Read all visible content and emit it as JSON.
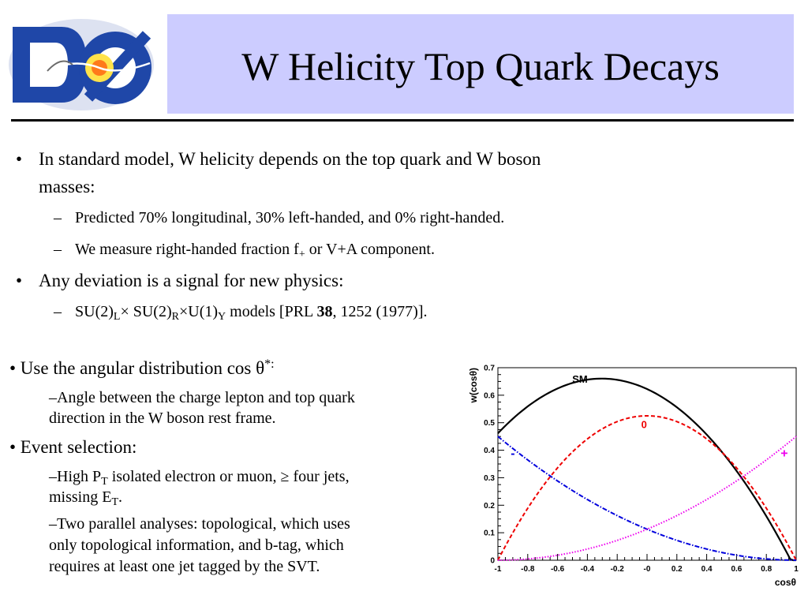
{
  "title": "W Helicity Top Quark Decays",
  "bullets": {
    "b1_line1": "In standard model, W helicity depends on the top quark and W boson",
    "b1_line2": "masses:",
    "b1_sub1": "Predicted 70% longitudinal, 30% left-handed, and 0% right-handed.",
    "b1_sub2_pre": "We measure right-handed fraction f",
    "b1_sub2_subscript": "+",
    "b1_sub2_post": " or V+A component.",
    "b2": "Any deviation is a signal for new physics:",
    "b2_sub": {
      "p1": "SU(2)",
      "s1": "L",
      "p2": "× SU(2)",
      "s2": "R",
      "p3": "×U(1)",
      "s3": "Y",
      "p4": " models [PRL ",
      "bold": "38",
      "p5": ", 1252 (1977)]."
    }
  },
  "bullets2": {
    "b3_pre": "• Use the angular distribution cos θ",
    "b3_sup": "*:",
    "b3_sub_line1": "–Angle between the charge lepton and top quark",
    "b3_sub_line2": "direction in the W boson rest frame.",
    "b4": "• Event selection:",
    "b4_sub1_p1": "–High P",
    "b4_sub1_s1": "T",
    "b4_sub1_p2": " isolated electron or muon, ≥ four jets,",
    "b4_sub1_line2_p1": "missing E",
    "b4_sub1_line2_s1": "T",
    "b4_sub1_line2_p2": ".",
    "b4_sub2_line1": "–Two parallel analyses: topological, which uses",
    "b4_sub2_line2": "only topological information, and b-tag, which",
    "b4_sub2_line3": "requires at least one jet tagged by the SVT."
  },
  "logo": {
    "text": "DØ"
  },
  "chart_data": {
    "type": "line",
    "xlabel": "cosθ",
    "ylabel": "w(cosθ)",
    "xlim": [
      -1,
      1
    ],
    "ylim": [
      0,
      0.7
    ],
    "x_ticks": [
      "-1",
      "-0.8",
      "-0.6",
      "-0.4",
      "-0.2",
      "-0",
      "0.2",
      "0.4",
      "0.6",
      "0.8",
      "1"
    ],
    "y_ticks": [
      "0",
      "0.1",
      "0.2",
      "0.3",
      "0.4",
      "0.5",
      "0.6",
      "0.7"
    ],
    "series": [
      {
        "name": "SM",
        "color": "#000000",
        "style": "solid",
        "x": [
          -1,
          -0.8,
          -0.6,
          -0.4,
          -0.2,
          0,
          0.2,
          0.4,
          0.6,
          0.8,
          1
        ],
        "y": [
          0.45,
          0.558,
          0.63,
          0.666,
          0.666,
          0.63,
          0.558,
          0.45,
          0.306,
          0.126,
          0
        ]
      },
      {
        "name": "0",
        "color": "#ee0000",
        "style": "dashed",
        "x": [
          -1,
          -0.8,
          -0.6,
          -0.4,
          -0.2,
          0,
          0.2,
          0.4,
          0.6,
          0.8,
          1
        ],
        "y": [
          0,
          0.189,
          0.336,
          0.441,
          0.504,
          0.525,
          0.504,
          0.441,
          0.336,
          0.189,
          0
        ]
      },
      {
        "name": "-",
        "color": "#0000dd",
        "style": "dashdot",
        "x": [
          -1,
          -0.8,
          -0.6,
          -0.4,
          -0.2,
          0,
          0.2,
          0.4,
          0.6,
          0.8,
          1
        ],
        "y": [
          0.45,
          0.365,
          0.288,
          0.221,
          0.162,
          0.113,
          0.072,
          0.041,
          0.018,
          0.005,
          0
        ]
      },
      {
        "name": "+",
        "color": "#ee00ee",
        "style": "dotted",
        "x": [
          -1,
          -0.8,
          -0.6,
          -0.4,
          -0.2,
          0,
          0.2,
          0.4,
          0.6,
          0.8,
          1
        ],
        "y": [
          0,
          0.005,
          0.018,
          0.041,
          0.072,
          0.113,
          0.162,
          0.221,
          0.288,
          0.365,
          0.45
        ]
      }
    ],
    "grid": false
  }
}
